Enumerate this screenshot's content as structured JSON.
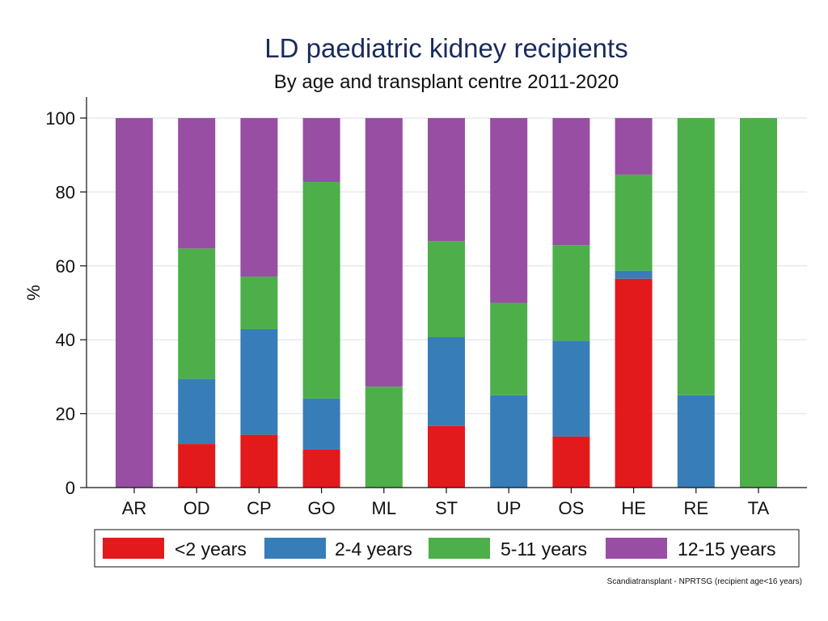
{
  "chart_data": {
    "type": "bar",
    "stacked": true,
    "title": "LD paediatric kidney recipients",
    "subtitle": "By age and transplant centre 2011-2020",
    "xlabel": "",
    "ylabel": "%",
    "ylim": [
      0,
      100
    ],
    "yticks": [
      "0",
      "20",
      "40",
      "60",
      "80",
      "100"
    ],
    "grid": true,
    "legend_position": "bottom",
    "categories": [
      "AR",
      "OD",
      "CP",
      "GO",
      "ML",
      "ST",
      "UP",
      "OS",
      "HE",
      "RE",
      "TA"
    ],
    "series": [
      {
        "name": "<2 years",
        "color": "#e31a1c",
        "values": [
          0,
          11.8,
          14.3,
          10.3,
          0,
          16.7,
          0,
          13.8,
          56.5,
          0,
          0
        ]
      },
      {
        "name": "2-4 years",
        "color": "#377eb8",
        "values": [
          0,
          17.6,
          28.6,
          13.8,
          0,
          24.0,
          25.0,
          25.9,
          2.2,
          25.0,
          0
        ]
      },
      {
        "name": "5-11 years",
        "color": "#4daf4a",
        "values": [
          0,
          35.3,
          14.2,
          58.6,
          27.3,
          26.0,
          25.0,
          25.9,
          26.0,
          75.0,
          100
        ]
      },
      {
        "name": "12-15 years",
        "color": "#984ea3",
        "values": [
          100,
          35.3,
          42.9,
          17.3,
          72.7,
          33.3,
          50.0,
          34.4,
          15.3,
          0,
          0
        ]
      }
    ],
    "source_note": "Scandiatransplant - NPRTSG (recipient age<16 years)"
  }
}
